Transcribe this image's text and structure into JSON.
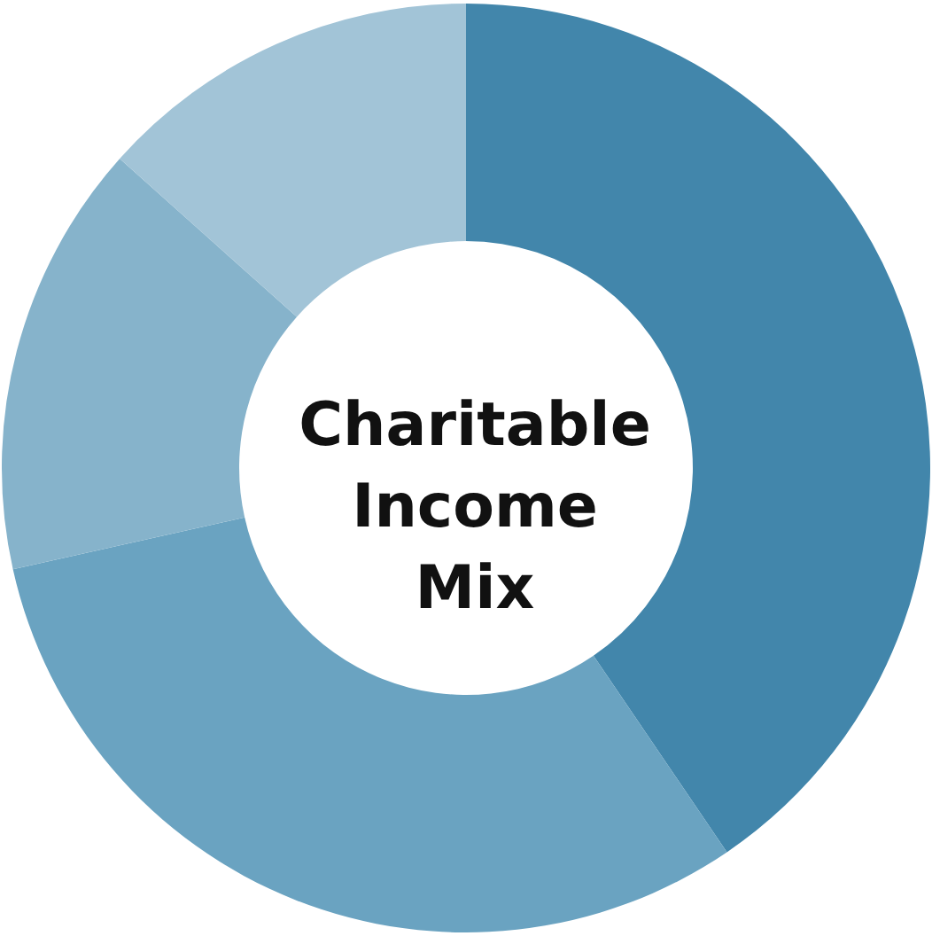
{
  "chart_data": {
    "type": "donut",
    "title": "Charitable Income Mix",
    "categories": [
      null,
      null,
      null,
      null
    ],
    "values": [
      40.5,
      31,
      15.1,
      13.4
    ],
    "colors": [
      "#4286ab",
      "#6aa3c1",
      "#86b3cb",
      "#a2c4d7"
    ]
  }
}
